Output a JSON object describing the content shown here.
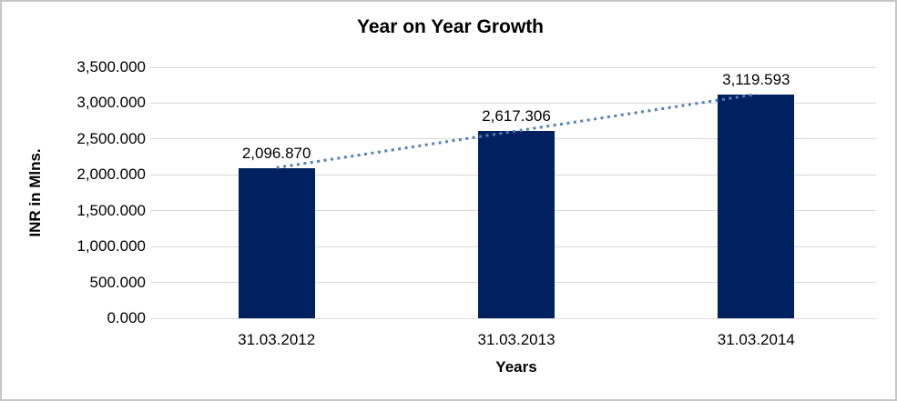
{
  "chart_data": {
    "type": "bar",
    "title": "Year on Year Growth",
    "xlabel": "Years",
    "ylabel": "INR in Mlns.",
    "categories": [
      "31.03.2012",
      "31.03.2013",
      "31.03.2014"
    ],
    "values": [
      2096.87,
      2617.306,
      3119.593
    ],
    "data_labels": [
      "2,096.870",
      "2,617.306",
      "3,119.593"
    ],
    "ylim": [
      0,
      3500
    ],
    "ytick_step": 500,
    "ytick_labels": [
      "0.000",
      "500.000",
      "1,000.000",
      "1,500.000",
      "2,000.000",
      "2,500.000",
      "3,000.000",
      "3,500.000"
    ],
    "grid": true,
    "legend": "none",
    "trendline": {
      "type": "linear",
      "style": "dotted"
    }
  },
  "colors": {
    "bar": "#002060",
    "gridline": "#d9d9d9",
    "tick": "#d9d9d9",
    "trendline": "#4f81bd",
    "text": "#000000",
    "frame_border": "#c6c6c6",
    "background": "#ffffff"
  }
}
